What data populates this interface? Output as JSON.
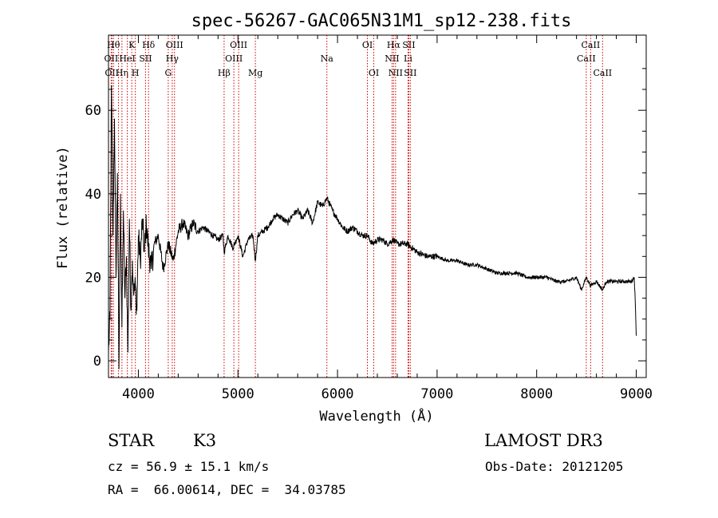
{
  "chart_data": {
    "type": "line",
    "title": "spec-56267-GAC065N31M1_sp12-238.fits",
    "xlabel": "Wavelength (Å)",
    "ylabel": "Flux (relative)",
    "xlim": [
      3700,
      9100
    ],
    "ylim": [
      -4,
      78
    ],
    "xticks": [
      4000,
      5000,
      6000,
      7000,
      8000,
      9000
    ],
    "yticks": [
      0,
      20,
      40,
      60
    ],
    "series": [
      {
        "name": "flux",
        "x": [
          3700,
          3715,
          3730,
          3745,
          3760,
          3775,
          3790,
          3805,
          3820,
          3835,
          3850,
          3865,
          3880,
          3895,
          3910,
          3925,
          3940,
          3955,
          3970,
          3985,
          4000,
          4020,
          4040,
          4060,
          4080,
          4100,
          4130,
          4160,
          4200,
          4250,
          4300,
          4350,
          4400,
          4450,
          4500,
          4550,
          4600,
          4650,
          4700,
          4750,
          4800,
          4850,
          4861,
          4900,
          4950,
          5000,
          5050,
          5100,
          5150,
          5175,
          5200,
          5250,
          5300,
          5350,
          5400,
          5450,
          5500,
          5550,
          5600,
          5650,
          5700,
          5750,
          5800,
          5850,
          5893,
          5950,
          6000,
          6050,
          6100,
          6150,
          6200,
          6250,
          6300,
          6350,
          6400,
          6450,
          6500,
          6563,
          6600,
          6650,
          6700,
          6750,
          6800,
          6900,
          7000,
          7100,
          7200,
          7300,
          7400,
          7500,
          7600,
          7700,
          7800,
          7900,
          8000,
          8100,
          8200,
          8300,
          8400,
          8450,
          8498,
          8542,
          8600,
          8662,
          8700,
          8800,
          8900,
          8950,
          8980,
          8990,
          9000
        ],
        "values": [
          2,
          10,
          66,
          30,
          58,
          20,
          45,
          -2,
          40,
          8,
          36,
          15,
          25,
          2,
          34,
          12,
          24,
          16,
          18,
          12,
          30,
          24,
          34,
          26,
          33,
          27,
          22,
          28,
          30,
          22,
          28,
          24,
          31,
          33,
          30,
          33,
          31,
          32,
          31,
          30,
          29,
          30,
          26,
          30,
          27,
          30,
          25,
          29,
          30,
          24,
          30,
          31,
          32,
          34,
          35,
          34,
          33,
          35,
          36,
          34,
          36,
          33,
          38,
          37,
          39,
          36,
          34,
          32,
          31,
          32,
          31,
          30,
          30,
          28,
          29,
          29,
          28,
          29,
          28,
          28,
          28,
          27,
          26,
          25,
          25,
          24,
          24,
          23,
          23,
          22,
          21,
          21,
          21,
          20,
          20,
          20,
          19,
          19,
          20,
          17,
          20,
          18,
          19,
          17,
          19,
          19,
          19,
          19,
          20,
          14,
          6
        ]
      }
    ],
    "lines": [
      {
        "wl": 3727,
        "label": "OII",
        "row": 1
      },
      {
        "wl": 3734,
        "label": "OII",
        "row": 2
      },
      {
        "wl": 3750,
        "label": "Hθ",
        "row": 0
      },
      {
        "wl": 3800,
        "label": "",
        "row": -1
      },
      {
        "wl": 3835,
        "label": "Hη",
        "row": 2
      },
      {
        "wl": 3889,
        "label": "HeI",
        "row": 1
      },
      {
        "wl": 3934,
        "label": "K",
        "row": 0
      },
      {
        "wl": 3970,
        "label": "H",
        "row": 2
      },
      {
        "wl": 4072,
        "label": "SII",
        "row": 1
      },
      {
        "wl": 4102,
        "label": "Hδ",
        "row": 0
      },
      {
        "wl": 4300,
        "label": "G",
        "row": 2
      },
      {
        "wl": 4340,
        "label": "Hγ",
        "row": 1
      },
      {
        "wl": 4363,
        "label": "OIII",
        "row": 0
      },
      {
        "wl": 4861,
        "label": "Hβ",
        "row": 2
      },
      {
        "wl": 4959,
        "label": "OIII",
        "row": 1
      },
      {
        "wl": 5007,
        "label": "OIII",
        "row": 0
      },
      {
        "wl": 5175,
        "label": "Mg",
        "row": 2
      },
      {
        "wl": 5893,
        "label": "Na",
        "row": 1
      },
      {
        "wl": 6300,
        "label": "OI",
        "row": 0
      },
      {
        "wl": 6364,
        "label": "OI",
        "row": 2
      },
      {
        "wl": 6548,
        "label": "NII",
        "row": 1
      },
      {
        "wl": 6563,
        "label": "Hα",
        "row": 0
      },
      {
        "wl": 6583,
        "label": "NII",
        "row": 2
      },
      {
        "wl": 6708,
        "label": "Li",
        "row": 1
      },
      {
        "wl": 6716,
        "label": "SII",
        "row": 0
      },
      {
        "wl": 6731,
        "label": "SII",
        "row": 2
      },
      {
        "wl": 8498,
        "label": "CaII",
        "row": 1
      },
      {
        "wl": 8542,
        "label": "CaII",
        "row": 0
      },
      {
        "wl": 8662,
        "label": "CaII",
        "row": 2
      }
    ]
  },
  "info": {
    "class": "STAR",
    "subclass": "K3",
    "cz": "cz = 56.9 ± 15.1 km/s",
    "radec": "RA =  66.00614, DEC =  34.03785",
    "survey": "LAMOST DR3",
    "obsdate": "Obs-Date: 20121205"
  },
  "colors": {
    "line_marker": "#cc0000",
    "spectrum": "#000000",
    "axis": "#000000"
  }
}
